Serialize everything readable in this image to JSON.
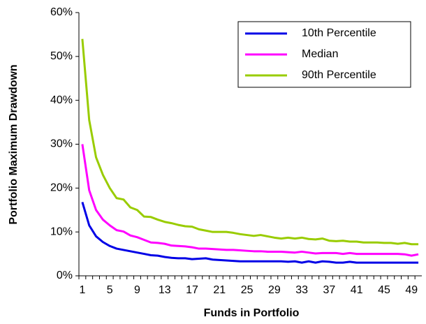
{
  "chart_data": {
    "type": "line",
    "x_label": "Funds in Portfolio",
    "y_label": "Portfolio Maximum Drawdown",
    "categories": [
      1,
      null,
      null,
      null,
      5,
      null,
      null,
      null,
      9,
      null,
      null,
      null,
      13,
      null,
      null,
      null,
      17,
      null,
      null,
      null,
      21,
      null,
      null,
      null,
      25,
      null,
      null,
      null,
      29,
      null,
      null,
      null,
      33,
      null,
      null,
      null,
      37,
      null,
      null,
      null,
      41,
      null,
      null,
      null,
      45,
      null,
      null,
      null,
      49,
      null
    ],
    "series": [
      {
        "name": "10th Percentile",
        "color": "#0000e6",
        "values": [
          16.8,
          11.5,
          9,
          7.7,
          6.8,
          6.2,
          5.9,
          5.6,
          5.3,
          5,
          4.7,
          4.6,
          4.3,
          4.1,
          4,
          4,
          3.8,
          3.9,
          4,
          3.7,
          3.6,
          3.5,
          3.4,
          3.3,
          3.3,
          3.3,
          3.3,
          3.3,
          3.3,
          3.3,
          3.2,
          3.3,
          3,
          3.3,
          3,
          3.3,
          3.2,
          3,
          3,
          3.2,
          3,
          3,
          3,
          3,
          3,
          3,
          3,
          3,
          3,
          3
        ]
      },
      {
        "name": "Median",
        "color": "#ff00ff",
        "values": [
          30,
          19.5,
          15,
          12.8,
          11.5,
          10.4,
          10.1,
          9.2,
          8.8,
          8.2,
          7.6,
          7.5,
          7.3,
          6.9,
          6.8,
          6.7,
          6.5,
          6.2,
          6.2,
          6.1,
          6,
          5.9,
          5.9,
          5.8,
          5.7,
          5.6,
          5.6,
          5.5,
          5.5,
          5.5,
          5.4,
          5.3,
          5.5,
          5.3,
          5.1,
          5.2,
          5.2,
          5.2,
          5,
          5.2,
          5,
          5,
          5,
          5,
          5,
          5,
          5,
          4.9,
          4.6,
          4.9
        ]
      },
      {
        "name": "90th Percentile",
        "color": "#99cc00",
        "values": [
          54,
          35.5,
          27,
          23,
          20,
          17.7,
          17.4,
          15.6,
          15,
          13.5,
          13.4,
          12.8,
          12.3,
          12,
          11.6,
          11.3,
          11.2,
          10.6,
          10.3,
          10,
          10,
          10,
          9.8,
          9.5,
          9.3,
          9.1,
          9.3,
          9,
          8.7,
          8.5,
          8.7,
          8.5,
          8.7,
          8.4,
          8.3,
          8.5,
          8,
          7.9,
          8,
          7.8,
          7.8,
          7.6,
          7.6,
          7.6,
          7.5,
          7.5,
          7.3,
          7.5,
          7.2,
          7.2
        ]
      }
    ],
    "ylim": [
      0,
      60
    ],
    "yticks": [
      {
        "value": 0,
        "label": "0%"
      },
      {
        "value": 10,
        "label": "10%"
      },
      {
        "value": 20,
        "label": "20%"
      },
      {
        "value": 30,
        "label": "30%"
      },
      {
        "value": 40,
        "label": "40%"
      },
      {
        "value": 50,
        "label": "50%"
      },
      {
        "value": 60,
        "label": "60%"
      }
    ],
    "grid": false,
    "legend": "top-right"
  }
}
